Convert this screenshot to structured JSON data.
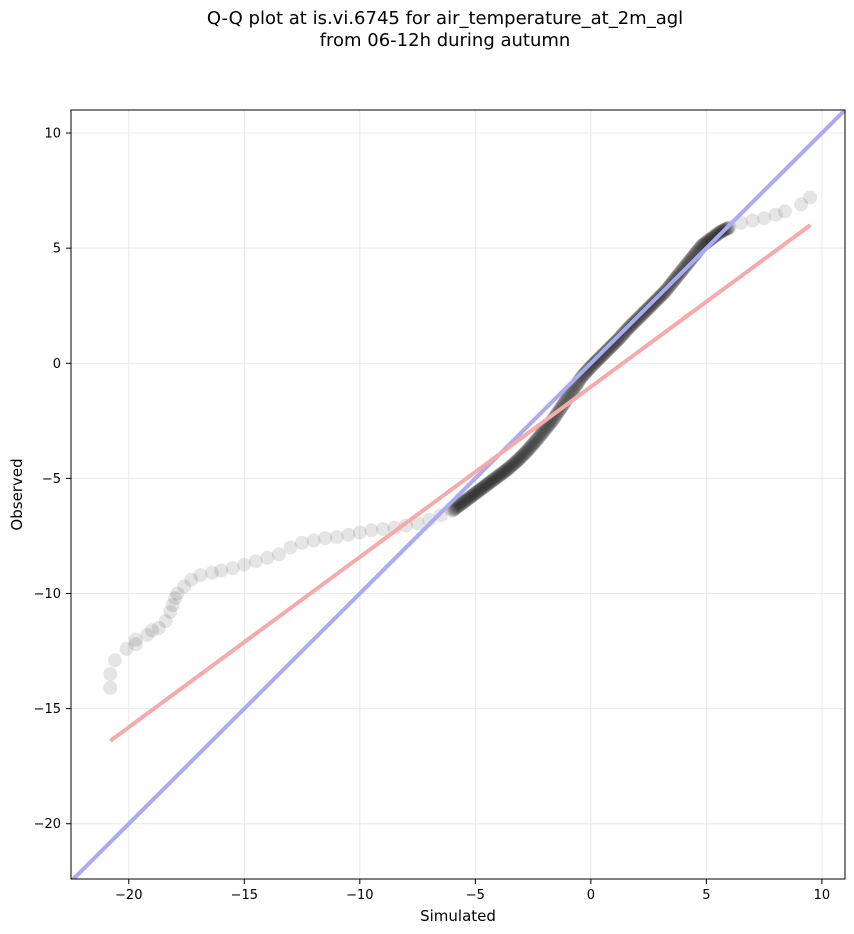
{
  "chart_data": {
    "type": "scatter",
    "title_line1": "Q-Q plot at is.vi.6745 for air_temperature_at_2m_agl",
    "title_line2": "from 06-12h during autumn",
    "xlabel": "Simulated",
    "ylabel": "Observed",
    "xlim": [
      -22.5,
      11.0
    ],
    "ylim": [
      -22.4,
      11.0
    ],
    "xticks": [
      -20,
      -15,
      -10,
      -5,
      0,
      5,
      10
    ],
    "yticks": [
      -20,
      -15,
      -10,
      -5,
      0,
      5,
      10
    ],
    "xtick_labels": [
      "−20",
      "−15",
      "−10",
      "−5",
      "0",
      "5",
      "10"
    ],
    "ytick_labels": [
      "−20",
      "−15",
      "−10",
      "−5",
      "0",
      "5",
      "10"
    ],
    "grid": true,
    "colors": {
      "points": "#000000",
      "identity_line": "#aaaaf5",
      "fit_line": "#f7aaaa"
    },
    "identity_line": {
      "x": [
        -22.5,
        11.0
      ],
      "y": [
        -22.5,
        11.0
      ]
    },
    "fit_line": {
      "x": [
        -20.8,
        9.5
      ],
      "y": [
        -16.4,
        6.0
      ]
    },
    "points": {
      "x": [
        -20.8,
        -20.8,
        -20.6,
        -20.1,
        -19.7,
        -19.7,
        -19.2,
        -19.0,
        -18.7,
        -18.4,
        -18.2,
        -18.1,
        -18.0,
        -17.9,
        -17.6,
        -17.3,
        -16.9,
        -16.4,
        -16.0,
        -15.5,
        -15.0,
        -14.5,
        -14.0,
        -13.5,
        -13.0,
        -12.5,
        -12.0,
        -11.5,
        -11.0,
        -10.5,
        -10.0,
        -9.5,
        -9.0,
        -8.5,
        -8.0,
        -7.5,
        -7.0,
        -6.5,
        -6.0,
        -5.6,
        -5.2,
        -4.8,
        -4.4,
        -4.0,
        -3.6,
        -3.2,
        -2.8,
        -2.4,
        -2.0,
        -1.6,
        -1.2,
        -0.8,
        -0.4,
        0.0,
        0.4,
        0.8,
        1.2,
        1.6,
        2.0,
        2.4,
        2.8,
        3.2,
        3.6,
        4.0,
        4.4,
        4.8,
        5.2,
        5.6,
        6.0,
        6.5,
        7.0,
        7.5,
        8.0,
        8.4,
        9.1,
        9.5
      ],
      "y": [
        -14.1,
        -13.5,
        -12.9,
        -12.4,
        -12.2,
        -12.0,
        -11.8,
        -11.6,
        -11.5,
        -11.2,
        -10.8,
        -10.5,
        -10.2,
        -10.0,
        -9.7,
        -9.4,
        -9.2,
        -9.1,
        -9.0,
        -8.9,
        -8.75,
        -8.6,
        -8.45,
        -8.3,
        -8.0,
        -7.8,
        -7.7,
        -7.6,
        -7.55,
        -7.45,
        -7.35,
        -7.25,
        -7.2,
        -7.15,
        -7.05,
        -6.95,
        -6.8,
        -6.6,
        -6.4,
        -6.1,
        -5.8,
        -5.5,
        -5.2,
        -4.9,
        -4.6,
        -4.25,
        -3.85,
        -3.4,
        -2.9,
        -2.4,
        -1.8,
        -1.2,
        -0.6,
        -0.15,
        0.25,
        0.65,
        1.05,
        1.5,
        1.9,
        2.3,
        2.7,
        3.1,
        3.6,
        4.1,
        4.6,
        5.1,
        5.4,
        5.7,
        5.9,
        6.1,
        6.2,
        6.3,
        6.45,
        6.6,
        6.9,
        7.2
      ]
    }
  }
}
